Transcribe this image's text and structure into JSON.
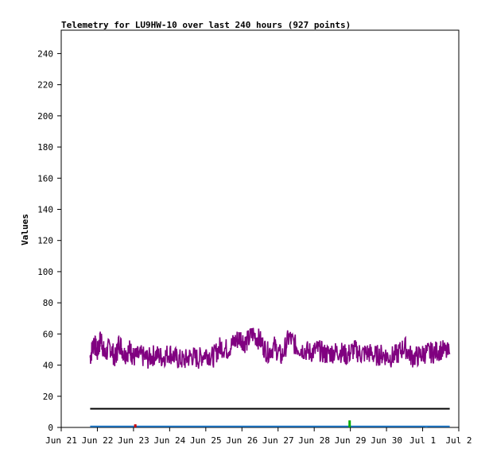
{
  "chart_data": {
    "type": "line",
    "title": "Telemetry for LU9HW-10 over last 240 hours (927 points)",
    "ylabel": "Values",
    "xlabel": "",
    "ylim": [
      0,
      255
    ],
    "yticks": [
      0,
      20,
      40,
      60,
      80,
      100,
      120,
      140,
      160,
      180,
      200,
      220,
      240
    ],
    "x_ticks": [
      "Jun 21",
      "Jun 22",
      "Jun 23",
      "Jun 24",
      "Jun 25",
      "Jun 26",
      "Jun 27",
      "Jun 28",
      "Jun 29",
      "Jun 30",
      "Jul 1",
      "Jul 2"
    ],
    "xlim_days": [
      0,
      11
    ],
    "grid": false,
    "legend": "none",
    "series": [
      {
        "color": "#800080",
        "x_days": [
          0.8,
          0.9,
          1.0,
          1.1,
          1.2,
          1.35,
          1.5,
          1.6,
          1.75,
          1.9,
          2.0,
          2.2,
          2.4,
          2.6,
          2.8,
          3.0,
          3.2,
          3.4,
          3.6,
          3.8,
          4.0,
          4.2,
          4.4,
          4.6,
          4.8,
          4.95,
          5.1,
          5.3,
          5.5,
          5.7,
          5.9,
          6.1,
          6.3,
          6.5,
          6.7,
          6.9,
          7.1,
          7.3,
          7.5,
          7.7,
          7.9,
          8.1,
          8.3,
          8.5,
          8.7,
          8.9,
          9.1,
          9.3,
          9.5,
          9.7,
          9.9,
          10.1,
          10.3,
          10.5,
          10.75
        ],
        "y": [
          45,
          55,
          48,
          58,
          46,
          52,
          44,
          55,
          47,
          50,
          45,
          46,
          44,
          47,
          45,
          48,
          44,
          43,
          46,
          44,
          48,
          45,
          52,
          50,
          55,
          58,
          54,
          60,
          56,
          48,
          52,
          45,
          58,
          52,
          50,
          48,
          50,
          47,
          48,
          49,
          46,
          50,
          47,
          48,
          46,
          47,
          45,
          47,
          52,
          45,
          46,
          48,
          48,
          50,
          47
        ],
        "band": 7
      },
      {
        "color": "#000000",
        "x_days": [
          0.8,
          10.75
        ],
        "y": [
          12,
          12
        ]
      },
      {
        "color": "#1e78c8",
        "x_days": [
          0.8,
          10.75
        ],
        "y": [
          0.6,
          0.6
        ]
      }
    ],
    "spikes": [
      {
        "color": "#cc0000",
        "x_day": 2.05,
        "y": 2
      },
      {
        "color": "#00aa00",
        "x_day": 7.98,
        "y": 4.5
      },
      {
        "color": "#1e78c8",
        "x_day": 10.1,
        "y": 1
      }
    ]
  }
}
